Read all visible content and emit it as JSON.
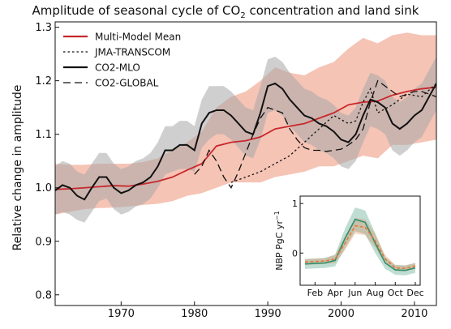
{
  "chart_data": [
    {
      "type": "line",
      "title": "Amplitude of seasonal cycle of CO",
      "title_sub": "2",
      "title_rest": " concentration and land sink",
      "ylabel": "Relative change in amplitude",
      "xlabel": "",
      "xlim": [
        1961,
        2013
      ],
      "ylim": [
        0.78,
        1.31
      ],
      "xticks": [
        1970,
        1980,
        1990,
        2000,
        2010
      ],
      "yticks": [
        0.8,
        0.9,
        1.0,
        1.1,
        1.2,
        1.3
      ],
      "ytick_labels": [
        "0.8",
        "0.9",
        "1.0",
        "1.1",
        "1.2",
        "1.3"
      ],
      "xtick_labels": [
        "1970",
        "1980",
        "1990",
        "2000",
        "2010"
      ],
      "legend_position": "top-left",
      "colors": {
        "mean": "#c8282d",
        "mean_band": "#f2b5a3",
        "mlo_band": "#a8a8a8"
      },
      "legend": [
        "Multi-Model Mean",
        "JMA-TRANSCOM",
        "CO2-MLO",
        "CO2-GLOBAL"
      ],
      "series": [
        {
          "name": "Multi-Model Mean",
          "style": "solid-red",
          "x": [
            1961,
            1963,
            1965,
            1967,
            1969,
            1971,
            1973,
            1975,
            1977,
            1979,
            1981,
            1983,
            1985,
            1987,
            1989,
            1991,
            1993,
            1995,
            1997,
            1999,
            2001,
            2003,
            2005,
            2007,
            2009,
            2011,
            2013
          ],
          "y": [
            0.997,
            0.998,
            1.0,
            1.002,
            1.004,
            1.003,
            1.007,
            1.012,
            1.02,
            1.033,
            1.045,
            1.078,
            1.085,
            1.088,
            1.095,
            1.11,
            1.115,
            1.12,
            1.13,
            1.14,
            1.155,
            1.16,
            1.162,
            1.173,
            1.18,
            1.185,
            1.188
          ],
          "band_low": [
            0.95,
            0.955,
            0.96,
            0.962,
            0.963,
            0.965,
            0.968,
            0.97,
            0.975,
            0.985,
            0.99,
            1.0,
            1.01,
            1.01,
            1.01,
            1.02,
            1.025,
            1.03,
            1.04,
            1.04,
            1.05,
            1.06,
            1.055,
            1.08,
            1.08,
            1.085,
            1.09
          ],
          "band_high": [
            1.045,
            1.043,
            1.043,
            1.045,
            1.045,
            1.045,
            1.048,
            1.055,
            1.07,
            1.085,
            1.105,
            1.15,
            1.17,
            1.18,
            1.2,
            1.225,
            1.215,
            1.21,
            1.225,
            1.235,
            1.26,
            1.28,
            1.27,
            1.285,
            1.29,
            1.285,
            1.285
          ]
        },
        {
          "name": "JMA-TRANSCOM",
          "style": "dotted-black",
          "x": [
            1985,
            1987,
            1989,
            1991,
            1993,
            1995,
            1997,
            1999,
            2001,
            2002,
            2003,
            2004,
            2005,
            2007,
            2009,
            2011,
            2013
          ],
          "y": [
            1.01,
            1.02,
            1.03,
            1.045,
            1.06,
            1.085,
            1.11,
            1.135,
            1.12,
            1.125,
            1.16,
            1.185,
            1.14,
            1.155,
            1.175,
            1.17,
            1.195
          ]
        },
        {
          "name": "CO2-MLO",
          "style": "solid-black",
          "x": [
            1961,
            1962,
            1963,
            1964,
            1965,
            1966,
            1967,
            1968,
            1969,
            1970,
            1971,
            1972,
            1973,
            1974,
            1975,
            1976,
            1977,
            1978,
            1979,
            1980,
            1981,
            1982,
            1983,
            1984,
            1985,
            1986,
            1987,
            1988,
            1989,
            1990,
            1991,
            1992,
            1993,
            1994,
            1995,
            1996,
            1997,
            1998,
            1999,
            2000,
            2001,
            2002,
            2003,
            2004,
            2005,
            2006,
            2007,
            2008,
            2009,
            2010,
            2011,
            2012,
            2013
          ],
          "y": [
            0.995,
            1.005,
            1.0,
            0.985,
            0.978,
            1.0,
            1.02,
            1.02,
            1.0,
            0.99,
            0.995,
            1.005,
            1.01,
            1.02,
            1.04,
            1.07,
            1.07,
            1.08,
            1.08,
            1.07,
            1.12,
            1.14,
            1.145,
            1.145,
            1.135,
            1.12,
            1.105,
            1.1,
            1.14,
            1.19,
            1.195,
            1.185,
            1.165,
            1.15,
            1.135,
            1.13,
            1.12,
            1.115,
            1.105,
            1.09,
            1.085,
            1.1,
            1.135,
            1.165,
            1.16,
            1.15,
            1.12,
            1.11,
            1.12,
            1.135,
            1.145,
            1.17,
            1.195
          ],
          "band_low": [
            0.95,
            0.955,
            0.95,
            0.94,
            0.935,
            0.955,
            0.975,
            0.98,
            0.96,
            0.95,
            0.955,
            0.965,
            0.97,
            0.98,
            1.0,
            1.025,
            1.03,
            1.035,
            1.035,
            1.03,
            1.075,
            1.09,
            1.1,
            1.1,
            1.09,
            1.075,
            1.06,
            1.055,
            1.09,
            1.14,
            1.145,
            1.135,
            1.115,
            1.1,
            1.085,
            1.08,
            1.07,
            1.065,
            1.055,
            1.04,
            1.035,
            1.05,
            1.085,
            1.115,
            1.11,
            1.1,
            1.07,
            1.06,
            1.07,
            1.085,
            1.095,
            1.12,
            1.145
          ],
          "band_high": [
            1.04,
            1.05,
            1.045,
            1.03,
            1.025,
            1.045,
            1.065,
            1.065,
            1.045,
            1.035,
            1.04,
            1.05,
            1.055,
            1.065,
            1.085,
            1.115,
            1.115,
            1.125,
            1.125,
            1.115,
            1.165,
            1.19,
            1.19,
            1.19,
            1.18,
            1.165,
            1.15,
            1.145,
            1.19,
            1.24,
            1.245,
            1.235,
            1.215,
            1.2,
            1.185,
            1.18,
            1.17,
            1.165,
            1.155,
            1.14,
            1.135,
            1.15,
            1.185,
            1.215,
            1.21,
            1.2,
            1.17,
            1.16,
            1.17,
            1.185,
            1.195,
            1.22,
            1.245
          ]
        },
        {
          "name": "CO2-GLOBAL",
          "style": "dashed-black",
          "x": [
            1980,
            1981,
            1982,
            1983,
            1984,
            1985,
            1986,
            1987,
            1988,
            1989,
            1990,
            1991,
            1992,
            1993,
            1994,
            1995,
            1996,
            1997,
            1998,
            1999,
            2000,
            2001,
            2002,
            2003,
            2004,
            2005,
            2006,
            2007,
            2008,
            2009,
            2010,
            2011,
            2012,
            2013
          ],
          "y": [
            1.025,
            1.04,
            1.07,
            1.05,
            1.02,
            1.0,
            1.03,
            1.065,
            1.1,
            1.13,
            1.15,
            1.145,
            1.14,
            1.11,
            1.09,
            1.075,
            1.07,
            1.07,
            1.068,
            1.07,
            1.072,
            1.08,
            1.09,
            1.11,
            1.16,
            1.2,
            1.19,
            1.18,
            1.17,
            1.175,
            1.18,
            1.18,
            1.175,
            1.17
          ]
        }
      ]
    },
    {
      "type": "line",
      "title": "",
      "ylabel": "NBP PgC yr",
      "ylabel_sup": "−1",
      "xtick_labels": [
        "Feb",
        "Apr",
        "Jun",
        "Aug",
        "Oct",
        "Dec"
      ],
      "yticks": [
        0,
        1
      ],
      "ytick_labels": [
        "0",
        "1"
      ],
      "months": [
        1,
        2,
        3,
        4,
        5,
        6,
        7,
        8,
        9,
        10,
        11,
        12
      ],
      "ylim": [
        -0.65,
        1.15
      ],
      "series": [
        {
          "name": "",
          "color": "#2f8f6e",
          "values": [
            -0.22,
            -0.21,
            -0.2,
            -0.15,
            0.3,
            0.68,
            0.62,
            0.2,
            -0.2,
            -0.34,
            -0.35,
            -0.3
          ],
          "band": [
            0.1,
            0.1,
            0.1,
            0.12,
            0.2,
            0.24,
            0.24,
            0.2,
            0.12,
            0.1,
            0.1,
            0.1
          ]
        },
        {
          "name": "",
          "color": "#e07a3f",
          "values": [
            -0.18,
            -0.17,
            -0.16,
            -0.12,
            0.2,
            0.55,
            0.52,
            0.25,
            -0.12,
            -0.3,
            -0.31,
            -0.26
          ],
          "band": [
            0.06,
            0.06,
            0.06,
            0.08,
            0.14,
            0.16,
            0.16,
            0.14,
            0.08,
            0.06,
            0.06,
            0.06
          ]
        }
      ]
    }
  ]
}
